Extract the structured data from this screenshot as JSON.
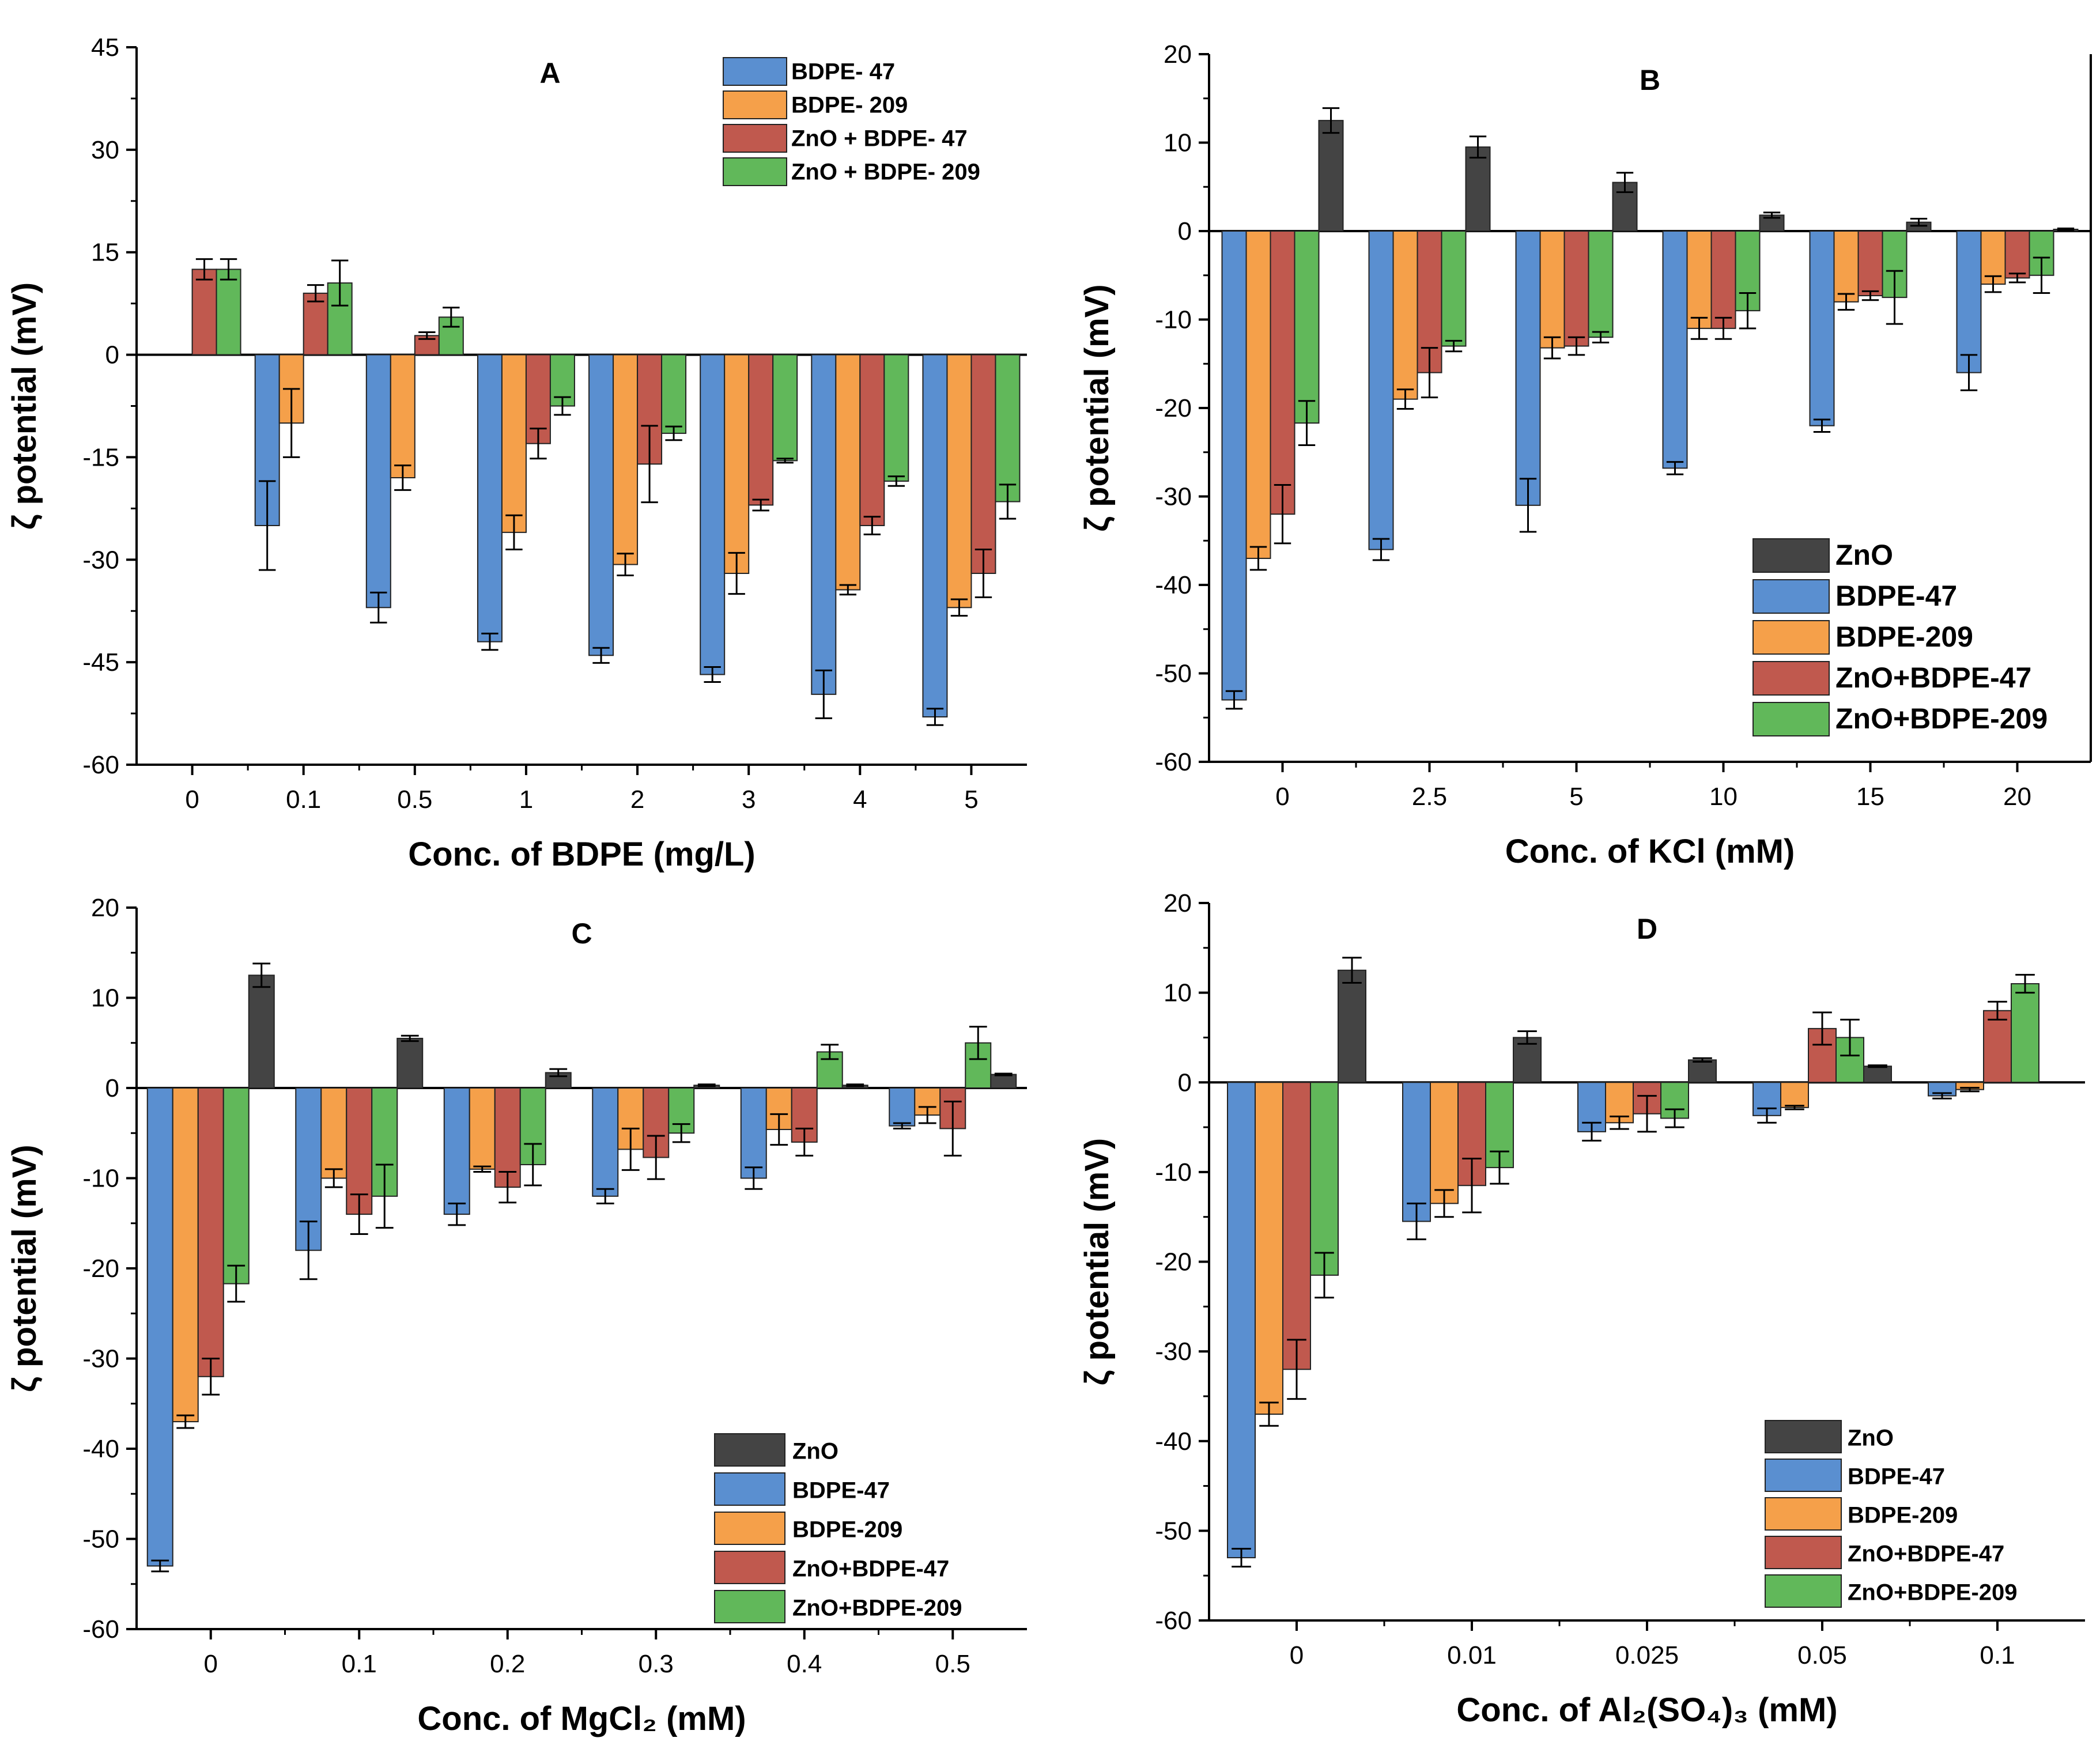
{
  "colors": {
    "ZnO": "#444444",
    "BDPE-47": "#5a8fd0",
    "BDPE-209": "#f5a04a",
    "ZnO+BDPE-47": "#c0594e",
    "ZnO+BDPE-209": "#61b85a",
    "axis": "#000000"
  },
  "chart_data": [
    {
      "id": "A",
      "type": "bar",
      "title": "A",
      "xlabel": "Conc. of BDPE (mg/L)",
      "ylabel": "ζ potential (mV)",
      "ylim": [
        -60,
        45
      ],
      "yticks": [
        45,
        30,
        15,
        0,
        -15,
        -30,
        -45,
        -60
      ],
      "categories": [
        "0",
        "0.1",
        "0.5",
        "1",
        "2",
        "3",
        "4",
        "5"
      ],
      "series": [
        {
          "name": "BDPE- 47",
          "color_key": "BDPE-47",
          "values": [
            null,
            -25.0,
            -37.0,
            -42.0,
            -44.0,
            -46.8,
            -49.7,
            -53.0
          ],
          "errors": [
            null,
            6.5,
            2.2,
            1.2,
            1.1,
            1.1,
            3.5,
            1.2
          ]
        },
        {
          "name": "BDPE- 209",
          "color_key": "BDPE-209",
          "values": [
            null,
            -10.0,
            -18.0,
            -26.0,
            -30.7,
            -32.0,
            -34.4,
            -37.0
          ],
          "errors": [
            null,
            5.0,
            1.8,
            2.5,
            1.6,
            3.0,
            0.7,
            1.2
          ]
        },
        {
          "name": "ZnO + BDPE- 47",
          "color_key": "ZnO+BDPE-47",
          "values": [
            12.5,
            9.0,
            2.8,
            -13.0,
            -16.0,
            -22.0,
            -25.0,
            -32.0
          ],
          "errors": [
            1.5,
            1.2,
            0.5,
            2.2,
            5.6,
            0.8,
            1.3,
            3.5
          ]
        },
        {
          "name": "ZnO + BDPE- 209",
          "color_key": "ZnO+BDPE-209",
          "values": [
            12.5,
            10.5,
            5.5,
            -7.5,
            -11.5,
            -15.5,
            -18.5,
            -21.5
          ],
          "errors": [
            1.5,
            3.3,
            1.4,
            1.3,
            1.0,
            0.3,
            0.7,
            2.5
          ]
        }
      ],
      "legend_position": "top-right"
    },
    {
      "id": "B",
      "type": "bar",
      "title": "B",
      "xlabel": "Conc. of KCl (mM)",
      "ylabel": "ζ potential (mV)",
      "ylim": [
        -60,
        20
      ],
      "yticks": [
        20,
        10,
        0,
        -10,
        -20,
        -30,
        -40,
        -50,
        -60
      ],
      "categories": [
        "0",
        "2.5",
        "5",
        "10",
        "15",
        "20"
      ],
      "series": [
        {
          "name": "BDPE-47",
          "color_key": "BDPE-47",
          "values": [
            -53.0,
            -36.0,
            -31.0,
            -26.8,
            -22.0,
            -16.0
          ],
          "errors": [
            1.0,
            1.2,
            3.0,
            0.7,
            0.7,
            2.0
          ]
        },
        {
          "name": "BDPE-209",
          "color_key": "BDPE-209",
          "values": [
            -37.0,
            -19.0,
            -13.2,
            -11.0,
            -8.0,
            -6.0
          ],
          "errors": [
            1.3,
            1.1,
            1.2,
            1.2,
            0.9,
            0.9
          ]
        },
        {
          "name": "ZnO+BDPE-47",
          "color_key": "ZnO+BDPE-47",
          "values": [
            -32.0,
            -16.0,
            -13.0,
            -11.0,
            -7.3,
            -5.3
          ],
          "errors": [
            3.3,
            2.8,
            1.0,
            1.2,
            0.5,
            0.5
          ]
        },
        {
          "name": "ZnO+BDPE-209",
          "color_key": "ZnO+BDPE-209",
          "values": [
            -21.7,
            -13.0,
            -12.0,
            -9.0,
            -7.5,
            -5.0
          ],
          "errors": [
            2.5,
            0.6,
            0.6,
            2.0,
            3.0,
            2.0
          ]
        },
        {
          "name": "ZnO",
          "color_key": "ZnO",
          "values": [
            12.5,
            9.5,
            5.5,
            1.8,
            1.0,
            0.2
          ],
          "errors": [
            1.4,
            1.2,
            1.1,
            0.3,
            0.4,
            0.1
          ]
        }
      ],
      "legend_position": "bottom-right"
    },
    {
      "id": "C",
      "type": "bar",
      "title": "C",
      "xlabel": "Conc. of MgCl₂ (mM)",
      "ylabel": "ζ potential (mV)",
      "ylim": [
        -60,
        20
      ],
      "yticks": [
        20,
        10,
        0,
        -10,
        -20,
        -30,
        -40,
        -50,
        -60
      ],
      "categories": [
        "0",
        "0.1",
        "0.2",
        "0.3",
        "0.4",
        "0.5"
      ],
      "series": [
        {
          "name": "BDPE-47",
          "color_key": "BDPE-47",
          "values": [
            -53.0,
            -18.0,
            -14.0,
            -12.0,
            -10.0,
            -4.2
          ],
          "errors": [
            0.6,
            3.2,
            1.2,
            0.8,
            1.2,
            0.3
          ]
        },
        {
          "name": "BDPE-209",
          "color_key": "BDPE-209",
          "values": [
            -37.0,
            -10.0,
            -9.0,
            -6.8,
            -4.6,
            -3.0
          ],
          "errors": [
            0.7,
            1.0,
            0.3,
            2.3,
            1.7,
            0.9
          ]
        },
        {
          "name": "ZnO+BDPE-47",
          "color_key": "ZnO+BDPE-47",
          "values": [
            -32.0,
            -14.0,
            -11.0,
            -7.7,
            -6.0,
            -4.5
          ],
          "errors": [
            2.0,
            2.2,
            1.7,
            2.4,
            1.5,
            3.0
          ]
        },
        {
          "name": "ZnO+BDPE-209",
          "color_key": "ZnO+BDPE-209",
          "values": [
            -21.7,
            -12.0,
            -8.5,
            -5.0,
            4.0,
            5.0
          ],
          "errors": [
            2.0,
            3.5,
            2.3,
            1.0,
            0.8,
            1.8
          ]
        },
        {
          "name": "ZnO",
          "color_key": "ZnO",
          "values": [
            12.5,
            5.5,
            1.7,
            0.3,
            0.3,
            1.5
          ],
          "errors": [
            1.3,
            0.3,
            0.4,
            0.1,
            0.1,
            0.1
          ]
        }
      ],
      "legend_position": "bottom-right"
    },
    {
      "id": "D",
      "type": "bar",
      "title": "D",
      "xlabel": "Conc. of Al₂(SO₄)₃ (mM)",
      "ylabel": "ζ potential (mV)",
      "ylim": [
        -60,
        20
      ],
      "yticks": [
        20,
        10,
        0,
        -10,
        -20,
        -30,
        -40,
        -50,
        -60
      ],
      "categories": [
        "0",
        "0.01",
        "0.025",
        "0.05",
        "0.1"
      ],
      "series": [
        {
          "name": "BDPE-47",
          "color_key": "BDPE-47",
          "values": [
            -53.0,
            -15.5,
            -5.5,
            -3.7,
            -1.5
          ],
          "errors": [
            1.0,
            2.0,
            1.0,
            0.8,
            0.3
          ]
        },
        {
          "name": "BDPE-209",
          "color_key": "BDPE-209",
          "values": [
            -37.0,
            -13.5,
            -4.5,
            -2.8,
            -0.8
          ],
          "errors": [
            1.3,
            1.5,
            0.7,
            0.2,
            0.2
          ]
        },
        {
          "name": "ZnO+BDPE-47",
          "color_key": "ZnO+BDPE-47",
          "values": [
            -32.0,
            -11.5,
            -3.5,
            6.0,
            8.0
          ],
          "errors": [
            3.3,
            3.0,
            2.0,
            1.8,
            1.0
          ]
        },
        {
          "name": "ZnO+BDPE-209",
          "color_key": "ZnO+BDPE-209",
          "values": [
            -21.5,
            -9.5,
            -4.0,
            5.0,
            11.0
          ],
          "errors": [
            2.5,
            1.8,
            1.0,
            2.0,
            1.0
          ]
        },
        {
          "name": "ZnO",
          "color_key": "ZnO",
          "values": [
            12.5,
            5.0,
            2.5,
            1.8,
            null
          ],
          "errors": [
            1.4,
            0.7,
            0.2,
            0.1,
            null
          ]
        }
      ],
      "legend_position": "bottom-right"
    }
  ],
  "legends": {
    "A": [
      {
        "label": "BDPE- 47",
        "color_key": "BDPE-47"
      },
      {
        "label": "BDPE- 209",
        "color_key": "BDPE-209"
      },
      {
        "label": "ZnO + BDPE- 47",
        "color_key": "ZnO+BDPE-47"
      },
      {
        "label": "ZnO + BDPE- 209",
        "color_key": "ZnO+BDPE-209"
      }
    ],
    "B": [
      {
        "label": "ZnO",
        "color_key": "ZnO"
      },
      {
        "label": "BDPE-47",
        "color_key": "BDPE-47"
      },
      {
        "label": "BDPE-209",
        "color_key": "BDPE-209"
      },
      {
        "label": "ZnO+BDPE-47",
        "color_key": "ZnO+BDPE-47"
      },
      {
        "label": "ZnO+BDPE-209",
        "color_key": "ZnO+BDPE-209"
      }
    ],
    "C": [
      {
        "label": "ZnO",
        "color_key": "ZnO"
      },
      {
        "label": "BDPE-47",
        "color_key": "BDPE-47"
      },
      {
        "label": "BDPE-209",
        "color_key": "BDPE-209"
      },
      {
        "label": "ZnO+BDPE-47",
        "color_key": "ZnO+BDPE-47"
      },
      {
        "label": "ZnO+BDPE-209",
        "color_key": "ZnO+BDPE-209"
      }
    ],
    "D": [
      {
        "label": "ZnO",
        "color_key": "ZnO"
      },
      {
        "label": "BDPE-47",
        "color_key": "BDPE-47"
      },
      {
        "label": "BDPE-209",
        "color_key": "BDPE-209"
      },
      {
        "label": "ZnO+BDPE-47",
        "color_key": "ZnO+BDPE-47"
      },
      {
        "label": "ZnO+BDPE-209",
        "color_key": "ZnO+BDPE-209"
      }
    ]
  }
}
